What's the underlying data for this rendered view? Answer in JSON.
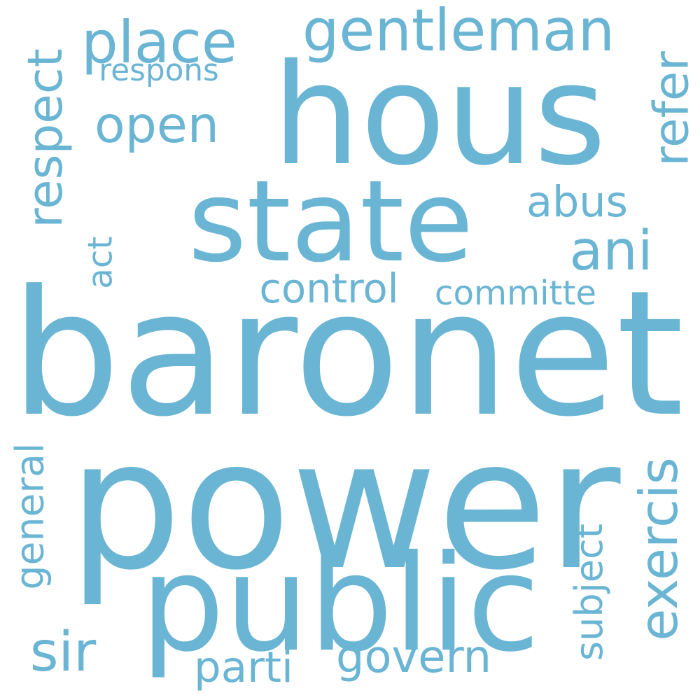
{
  "word_color": "#6bb5d4",
  "background_color": "#ffffff",
  "words": [
    "baronet",
    "power",
    "hous",
    "state",
    "public",
    "gentleman",
    "place",
    "respect",
    "open",
    "refer",
    "ani",
    "respons",
    "abus",
    "control",
    "committe",
    "act",
    "exercis",
    "general",
    "subject",
    "sir",
    "parti",
    "govern"
  ]
}
